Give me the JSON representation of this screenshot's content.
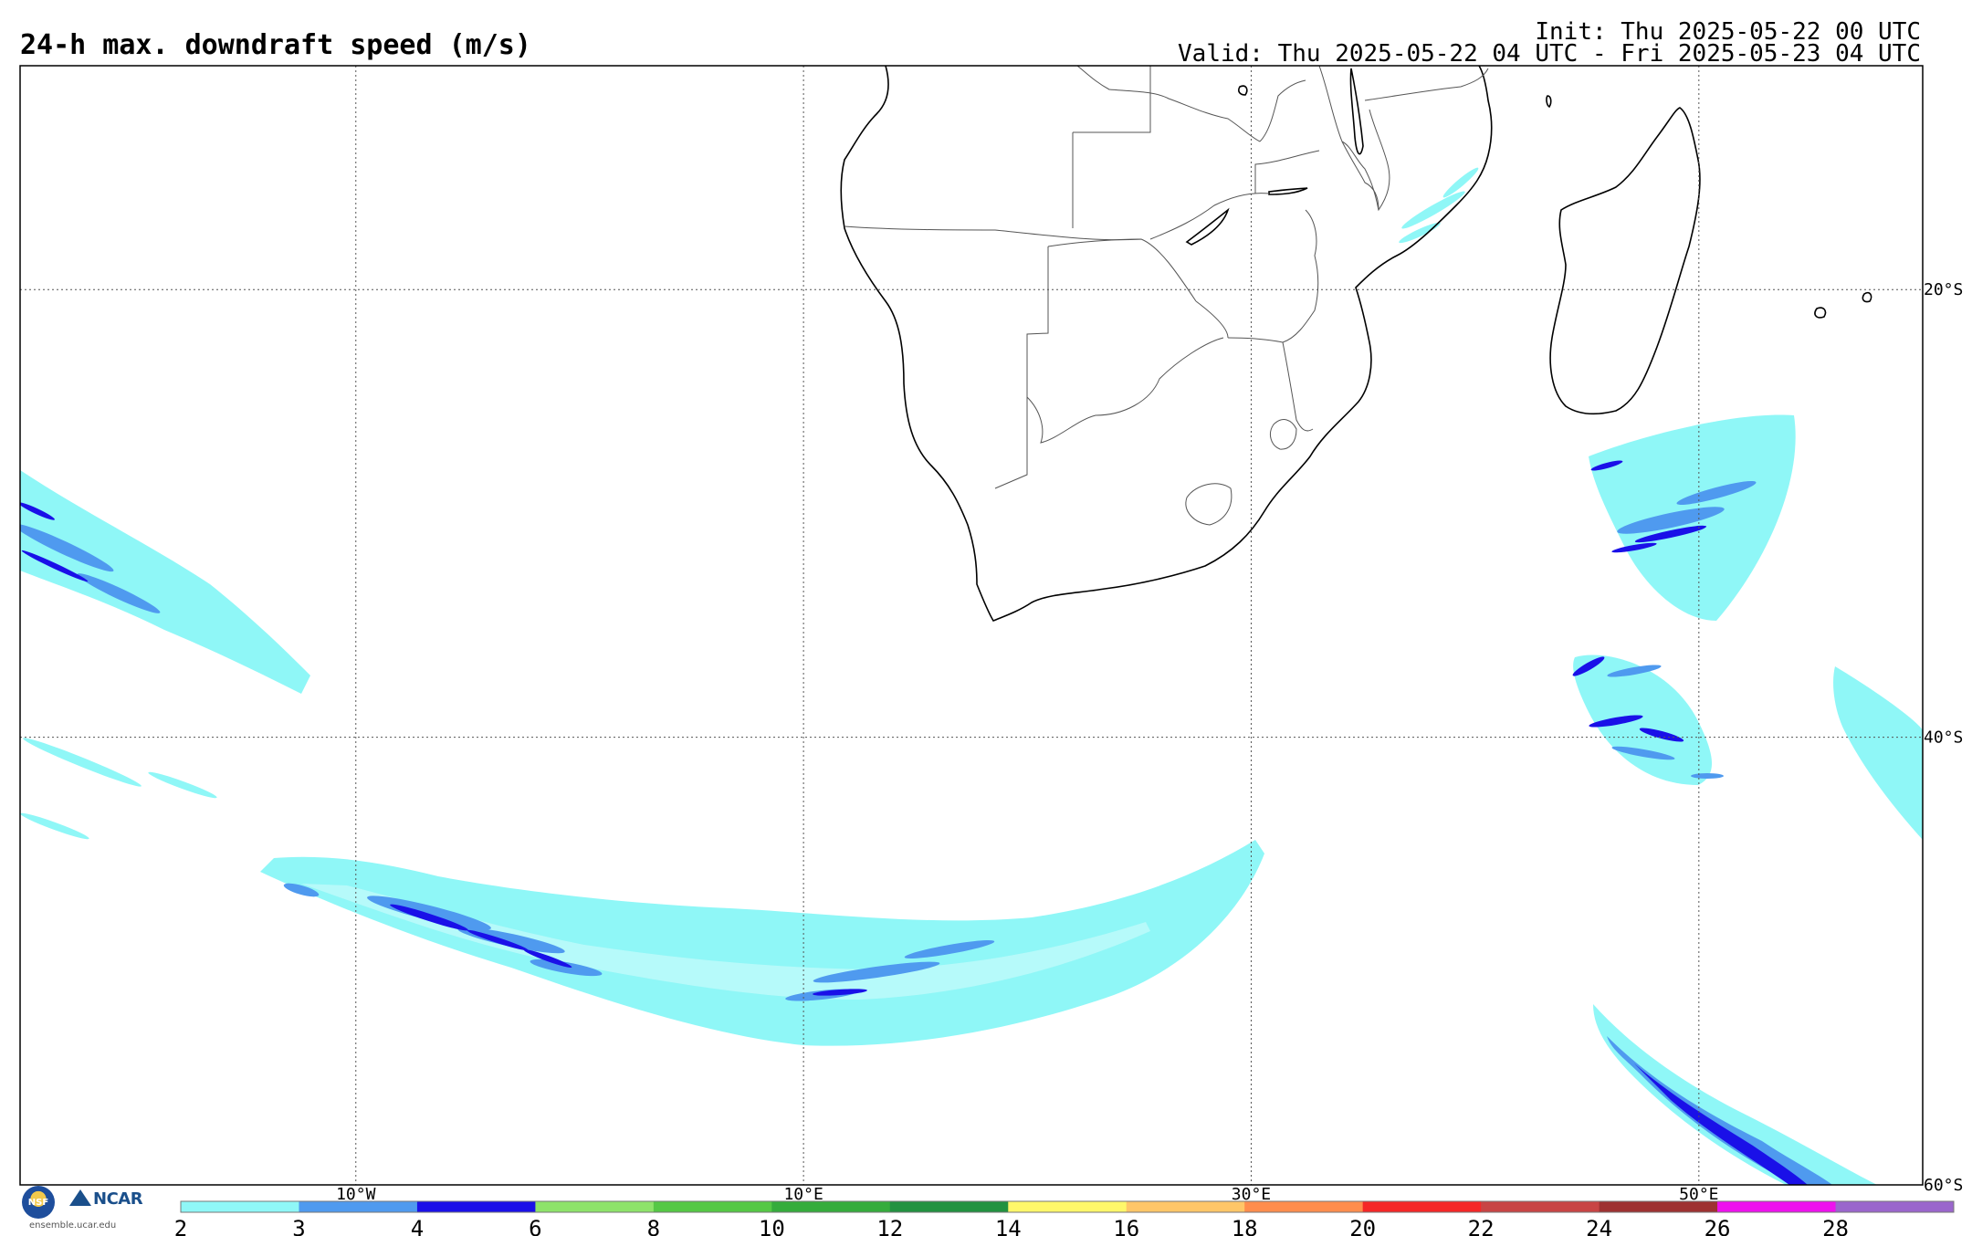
{
  "header": {
    "title": "24-h max. downdraft speed (m/s)",
    "init": "Init: Thu 2025-05-22 00 UTC",
    "valid": "Valid: Thu 2025-05-22 04 UTC - Fri 2025-05-23 04 UTC"
  },
  "map": {
    "lon_range": [
      -25,
      60
    ],
    "lat_range": [
      -60,
      -10
    ],
    "lon_labels": [
      {
        "lon": -10,
        "text": "10°W"
      },
      {
        "lon": 10,
        "text": "10°E"
      },
      {
        "lon": 30,
        "text": "30°E"
      },
      {
        "lon": 50,
        "text": "50°E"
      }
    ],
    "lat_labels": [
      {
        "lat": -20,
        "text": "20°S"
      },
      {
        "lat": -40,
        "text": "40°S"
      },
      {
        "lat": -60,
        "text": "60°S"
      }
    ],
    "land_outline_color": "#000000",
    "border_color": "#555555",
    "grid_color": "#555555"
  },
  "colorbar": {
    "ticks": [
      "2",
      "3",
      "4",
      "6",
      "8",
      "10",
      "12",
      "14",
      "16",
      "18",
      "20",
      "22",
      "24",
      "26",
      "28"
    ],
    "colors": [
      "#8ff7f7",
      "#4f9aef",
      "#1a10e8",
      "#8ee36a",
      "#55c845",
      "#35ac3c",
      "#229240",
      "#fff76a",
      "#ffc668",
      "#ff8d4d",
      "#f52727",
      "#c84444",
      "#9e3131",
      "#ee11ee",
      "#9a66cc"
    ]
  },
  "logos": {
    "nsf_icon": "nsf-logo-icon",
    "nsf_text": "NSF",
    "ncar_text": "NCAR",
    "site": "ensemble.ucar.edu"
  }
}
